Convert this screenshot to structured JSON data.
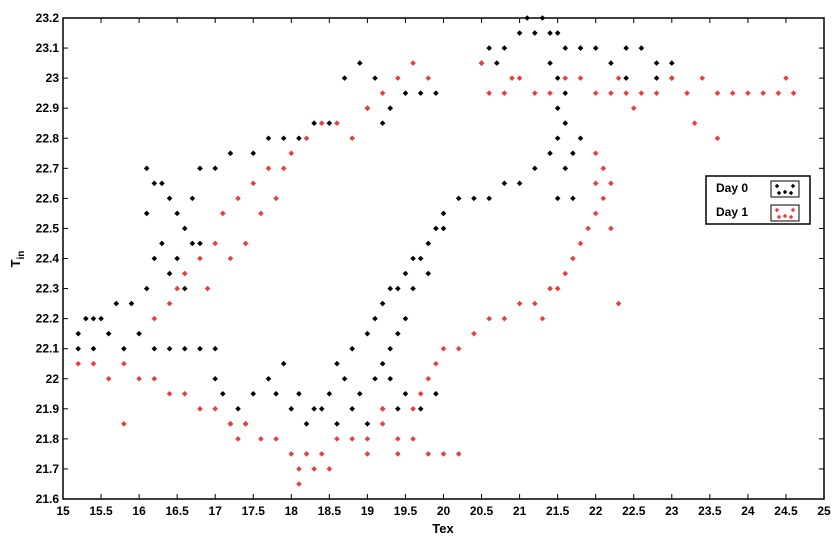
{
  "chart_data": {
    "type": "scatter",
    "xlabel": "Tex",
    "ylabel_main": "T",
    "ylabel_sub": "in",
    "xlim": [
      15,
      25
    ],
    "ylim": [
      21.6,
      23.2
    ],
    "xticks": [
      "15",
      "15.5",
      "16",
      "16.5",
      "17",
      "17.5",
      "18",
      "18.5",
      "19",
      "19.5",
      "20",
      "20.5",
      "21",
      "21.5",
      "22",
      "22.5",
      "23",
      "23.5",
      "24",
      "24.5",
      "25"
    ],
    "yticks": [
      "21.6",
      "21.7",
      "21.8",
      "21.9",
      "22",
      "22.1",
      "22.2",
      "22.3",
      "22.4",
      "22.5",
      "22.6",
      "22.7",
      "22.8",
      "22.9",
      "23",
      "23.1",
      "23.2"
    ],
    "legend_position": "right",
    "series": [
      {
        "name": "Day 0",
        "color": "#000000",
        "points": [
          [
            15.2,
            22.15
          ],
          [
            15.3,
            22.2
          ],
          [
            15.4,
            22.2
          ],
          [
            15.5,
            22.2
          ],
          [
            15.7,
            22.25
          ],
          [
            15.9,
            22.25
          ],
          [
            16.1,
            22.3
          ],
          [
            16.2,
            22.4
          ],
          [
            16.3,
            22.45
          ],
          [
            16.1,
            22.55
          ],
          [
            16.2,
            22.65
          ],
          [
            16.1,
            22.7
          ],
          [
            16.3,
            22.65
          ],
          [
            16.4,
            22.6
          ],
          [
            16.5,
            22.55
          ],
          [
            16.6,
            22.5
          ],
          [
            16.7,
            22.45
          ],
          [
            16.8,
            22.45
          ],
          [
            16.5,
            22.4
          ],
          [
            16.4,
            22.35
          ],
          [
            16.6,
            22.3
          ],
          [
            16.7,
            22.6
          ],
          [
            16.8,
            22.7
          ],
          [
            17.0,
            22.7
          ],
          [
            17.2,
            22.75
          ],
          [
            17.5,
            22.75
          ],
          [
            17.7,
            22.8
          ],
          [
            17.9,
            22.8
          ],
          [
            18.1,
            22.8
          ],
          [
            18.3,
            22.85
          ],
          [
            18.5,
            22.85
          ],
          [
            18.7,
            23.0
          ],
          [
            18.9,
            23.05
          ],
          [
            19.1,
            23.0
          ],
          [
            19.3,
            22.9
          ],
          [
            19.5,
            22.95
          ],
          [
            19.7,
            22.95
          ],
          [
            19.9,
            22.95
          ],
          [
            19.2,
            22.85
          ],
          [
            19.0,
            22.9
          ],
          [
            15.2,
            22.1
          ],
          [
            15.4,
            22.1
          ],
          [
            15.6,
            22.15
          ],
          [
            15.8,
            22.1
          ],
          [
            16.0,
            22.15
          ],
          [
            16.2,
            22.1
          ],
          [
            16.4,
            22.1
          ],
          [
            16.6,
            22.1
          ],
          [
            16.8,
            22.1
          ],
          [
            17.0,
            22.1
          ],
          [
            17.1,
            21.95
          ],
          [
            17.3,
            21.9
          ],
          [
            17.5,
            21.95
          ],
          [
            17.7,
            22.0
          ],
          [
            17.9,
            22.05
          ],
          [
            18.1,
            21.95
          ],
          [
            18.3,
            21.9
          ],
          [
            18.5,
            21.95
          ],
          [
            18.7,
            22.0
          ],
          [
            18.9,
            21.95
          ],
          [
            19.1,
            22.0
          ],
          [
            19.3,
            22.0
          ],
          [
            19.5,
            21.95
          ],
          [
            19.7,
            21.9
          ],
          [
            19.9,
            21.95
          ],
          [
            18.2,
            21.85
          ],
          [
            18.4,
            21.9
          ],
          [
            18.6,
            21.85
          ],
          [
            18.8,
            21.9
          ],
          [
            19.0,
            21.85
          ],
          [
            19.2,
            21.9
          ],
          [
            19.4,
            21.9
          ],
          [
            18.0,
            21.9
          ],
          [
            17.8,
            21.95
          ],
          [
            18.6,
            22.05
          ],
          [
            18.8,
            22.1
          ],
          [
            19.0,
            22.15
          ],
          [
            19.1,
            22.2
          ],
          [
            19.2,
            22.25
          ],
          [
            19.3,
            22.3
          ],
          [
            19.4,
            22.3
          ],
          [
            19.5,
            22.35
          ],
          [
            19.6,
            22.4
          ],
          [
            19.7,
            22.4
          ],
          [
            19.8,
            22.45
          ],
          [
            19.9,
            22.5
          ],
          [
            20.0,
            22.55
          ],
          [
            20.2,
            22.6
          ],
          [
            20.4,
            22.6
          ],
          [
            20.6,
            22.6
          ],
          [
            20.8,
            22.65
          ],
          [
            21.0,
            22.65
          ],
          [
            21.2,
            22.7
          ],
          [
            21.4,
            22.75
          ],
          [
            21.5,
            22.8
          ],
          [
            21.5,
            22.9
          ],
          [
            21.6,
            22.95
          ],
          [
            21.5,
            23.0
          ],
          [
            21.4,
            23.05
          ],
          [
            20.6,
            23.1
          ],
          [
            20.8,
            23.1
          ],
          [
            21.0,
            23.15
          ],
          [
            21.2,
            23.15
          ],
          [
            21.4,
            23.15
          ],
          [
            21.6,
            23.1
          ],
          [
            21.8,
            23.1
          ],
          [
            22.0,
            23.1
          ],
          [
            22.2,
            23.05
          ],
          [
            22.4,
            23.1
          ],
          [
            22.6,
            23.1
          ],
          [
            22.8,
            23.05
          ],
          [
            23.0,
            23.05
          ],
          [
            21.1,
            23.2
          ],
          [
            21.3,
            23.2
          ],
          [
            21.5,
            23.15
          ],
          [
            20.5,
            23.05
          ],
          [
            20.7,
            23.05
          ],
          [
            22.4,
            23.0
          ],
          [
            22.8,
            23.0
          ],
          [
            23.0,
            23.0
          ],
          [
            21.6,
            22.85
          ],
          [
            21.7,
            22.75
          ],
          [
            21.8,
            22.8
          ],
          [
            21.6,
            22.7
          ],
          [
            21.5,
            22.6
          ],
          [
            21.7,
            22.6
          ],
          [
            20.0,
            22.5
          ],
          [
            19.8,
            22.35
          ],
          [
            19.6,
            22.3
          ],
          [
            19.5,
            22.2
          ],
          [
            19.4,
            22.15
          ],
          [
            19.3,
            22.1
          ],
          [
            19.2,
            22.05
          ],
          [
            17.0,
            22.0
          ],
          [
            17.4,
            21.85
          ],
          [
            17.2,
            21.85
          ]
        ]
      },
      {
        "name": "Day 1",
        "color": "#ee3b3b",
        "points": [
          [
            15.2,
            22.05
          ],
          [
            15.4,
            22.05
          ],
          [
            15.6,
            22.0
          ],
          [
            15.8,
            22.05
          ],
          [
            16.0,
            22.0
          ],
          [
            16.2,
            22.0
          ],
          [
            16.4,
            21.95
          ],
          [
            16.6,
            21.95
          ],
          [
            16.8,
            21.9
          ],
          [
            17.0,
            21.9
          ],
          [
            17.2,
            21.85
          ],
          [
            17.4,
            21.85
          ],
          [
            17.6,
            21.8
          ],
          [
            17.8,
            21.8
          ],
          [
            18.0,
            21.75
          ],
          [
            18.2,
            21.75
          ],
          [
            18.4,
            21.75
          ],
          [
            18.6,
            21.8
          ],
          [
            18.8,
            21.8
          ],
          [
            19.0,
            21.8
          ],
          [
            19.2,
            21.85
          ],
          [
            19.4,
            21.8
          ],
          [
            19.6,
            21.8
          ],
          [
            19.8,
            21.75
          ],
          [
            20.0,
            21.75
          ],
          [
            20.2,
            21.75
          ],
          [
            18.1,
            21.7
          ],
          [
            18.3,
            21.7
          ],
          [
            18.5,
            21.7
          ],
          [
            18.1,
            21.65
          ],
          [
            19.0,
            21.75
          ],
          [
            19.4,
            21.75
          ],
          [
            19.2,
            21.9
          ],
          [
            19.6,
            21.9
          ],
          [
            15.8,
            21.85
          ],
          [
            17.3,
            21.8
          ],
          [
            19.7,
            21.95
          ],
          [
            19.8,
            22.0
          ],
          [
            19.9,
            22.05
          ],
          [
            20.0,
            22.1
          ],
          [
            20.2,
            22.1
          ],
          [
            20.4,
            22.15
          ],
          [
            20.6,
            22.2
          ],
          [
            20.8,
            22.2
          ],
          [
            21.0,
            22.25
          ],
          [
            21.2,
            22.25
          ],
          [
            21.4,
            22.3
          ],
          [
            21.6,
            22.35
          ],
          [
            21.8,
            22.45
          ],
          [
            21.9,
            22.5
          ],
          [
            22.0,
            22.55
          ],
          [
            22.1,
            22.6
          ],
          [
            22.2,
            22.65
          ],
          [
            22.1,
            22.7
          ],
          [
            22.0,
            22.75
          ],
          [
            22.0,
            22.65
          ],
          [
            22.2,
            22.5
          ],
          [
            22.3,
            22.25
          ],
          [
            21.7,
            22.4
          ],
          [
            21.5,
            22.3
          ],
          [
            21.3,
            22.2
          ],
          [
            16.2,
            22.2
          ],
          [
            16.4,
            22.25
          ],
          [
            16.5,
            22.3
          ],
          [
            16.6,
            22.35
          ],
          [
            16.8,
            22.4
          ],
          [
            17.0,
            22.45
          ],
          [
            17.2,
            22.4
          ],
          [
            17.4,
            22.45
          ],
          [
            17.1,
            22.55
          ],
          [
            17.3,
            22.6
          ],
          [
            17.5,
            22.65
          ],
          [
            17.7,
            22.7
          ],
          [
            17.9,
            22.7
          ],
          [
            18.0,
            22.75
          ],
          [
            18.2,
            22.8
          ],
          [
            18.4,
            22.85
          ],
          [
            18.6,
            22.85
          ],
          [
            18.8,
            22.8
          ],
          [
            19.0,
            22.9
          ],
          [
            19.2,
            22.95
          ],
          [
            19.4,
            23.0
          ],
          [
            19.6,
            23.05
          ],
          [
            19.8,
            23.0
          ],
          [
            17.6,
            22.55
          ],
          [
            17.8,
            22.6
          ],
          [
            16.9,
            22.3
          ],
          [
            20.6,
            22.95
          ],
          [
            20.8,
            22.95
          ],
          [
            21.0,
            23.0
          ],
          [
            21.2,
            22.95
          ],
          [
            21.4,
            22.95
          ],
          [
            21.6,
            23.0
          ],
          [
            21.8,
            23.0
          ],
          [
            22.0,
            22.95
          ],
          [
            22.2,
            22.95
          ],
          [
            22.4,
            22.95
          ],
          [
            22.6,
            22.95
          ],
          [
            22.8,
            22.95
          ],
          [
            23.0,
            23.0
          ],
          [
            23.2,
            22.95
          ],
          [
            23.4,
            23.0
          ],
          [
            23.6,
            22.95
          ],
          [
            23.8,
            22.95
          ],
          [
            24.0,
            22.95
          ],
          [
            24.2,
            22.95
          ],
          [
            24.4,
            22.95
          ],
          [
            24.6,
            22.95
          ],
          [
            24.5,
            23.0
          ],
          [
            23.3,
            22.85
          ],
          [
            23.6,
            22.8
          ],
          [
            22.5,
            22.9
          ],
          [
            20.5,
            23.05
          ],
          [
            20.9,
            23.0
          ],
          [
            22.3,
            23.0
          ]
        ]
      }
    ]
  }
}
